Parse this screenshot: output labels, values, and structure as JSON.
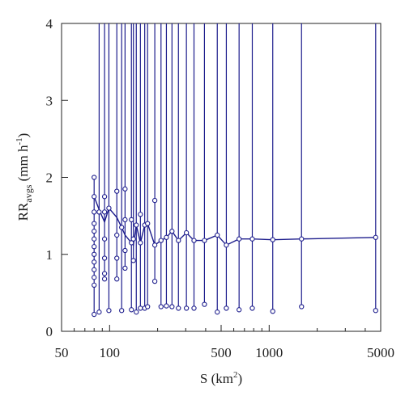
{
  "chart_data": {
    "type": "line",
    "x_scale": "log",
    "xlim": [
      50,
      5000
    ],
    "ylim": [
      0,
      4
    ],
    "xlabel": "S (km",
    "xlabel_sup": "2",
    "xlabel_tail": ")",
    "ylabel_main": "RR",
    "ylabel_sub": "avgs",
    "ylabel_unit": " (mm h",
    "ylabel_unit_sup": "-1",
    "ylabel_close": ")",
    "x_ticks": [
      50,
      100,
      500,
      1000,
      5000
    ],
    "x_tick_labels": [
      "50",
      "100",
      "500",
      "1000",
      "5000"
    ],
    "y_ticks": [
      0,
      1,
      2,
      3,
      4
    ],
    "y_tick_labels": [
      "0",
      "1",
      "2",
      "3",
      "4"
    ],
    "grid": false,
    "colors": {
      "series": "#1c1c8c",
      "axis": "#222222"
    },
    "stations": [
      {
        "x": 80,
        "mean": 1.75,
        "lo": 0.22,
        "hi": 2.0,
        "circles": [
          2.0,
          1.75,
          1.55,
          1.4,
          1.3,
          1.2,
          1.1,
          1.0,
          0.9,
          0.8,
          0.7,
          0.6,
          0.22
        ]
      },
      {
        "x": 86,
        "mean": 1.58,
        "lo": 0.25,
        "hi": 4.0,
        "circles": [
          1.55,
          0.25
        ]
      },
      {
        "x": 93,
        "mean": 1.42,
        "lo": 0.68,
        "hi": 4.0,
        "circles": [
          1.75,
          1.55,
          1.2,
          0.95,
          0.75,
          0.68
        ]
      },
      {
        "x": 99,
        "mean": 1.6,
        "lo": 0.27,
        "hi": 4.0,
        "circles": [
          1.6,
          0.27
        ]
      },
      {
        "x": 111,
        "mean": 1.48,
        "lo": 0.68,
        "hi": 4.0,
        "circles": [
          1.82,
          1.25,
          0.95,
          0.68
        ]
      },
      {
        "x": 119,
        "mean": 1.35,
        "lo": 0.27,
        "hi": 4.0,
        "circles": [
          1.35,
          0.27
        ]
      },
      {
        "x": 125,
        "mean": 1.25,
        "lo": 0.82,
        "hi": 4.0,
        "circles": [
          1.85,
          1.45,
          1.05,
          0.82
        ]
      },
      {
        "x": 137,
        "mean": 1.15,
        "lo": 0.28,
        "hi": 4.0,
        "circles": [
          1.45,
          1.15,
          0.28
        ]
      },
      {
        "x": 141,
        "mean": 1.12,
        "lo": 0.92,
        "hi": 4.0,
        "circles": [
          1.2,
          0.92
        ]
      },
      {
        "x": 147,
        "mean": 1.38,
        "lo": 0.25,
        "hi": 4.0,
        "circles": [
          1.38,
          0.25
        ]
      },
      {
        "x": 156,
        "mean": 1.15,
        "lo": 0.3,
        "hi": 4.0,
        "circles": [
          1.52,
          1.15,
          0.3
        ]
      },
      {
        "x": 166,
        "mean": 1.38,
        "lo": 0.3,
        "hi": 4.0,
        "circles": [
          1.38,
          0.3
        ]
      },
      {
        "x": 173,
        "mean": 1.4,
        "lo": 0.32,
        "hi": 4.0,
        "circles": [
          1.4,
          0.32
        ]
      },
      {
        "x": 192,
        "mean": 1.12,
        "lo": 0.65,
        "hi": 4.0,
        "circles": [
          1.7,
          1.12,
          0.65
        ]
      },
      {
        "x": 210,
        "mean": 1.18,
        "lo": 0.32,
        "hi": 4.0,
        "circles": [
          1.18,
          0.32
        ]
      },
      {
        "x": 227,
        "mean": 1.22,
        "lo": 0.33,
        "hi": 4.0,
        "circles": [
          1.22,
          0.33
        ]
      },
      {
        "x": 246,
        "mean": 1.3,
        "lo": 0.32,
        "hi": 4.0,
        "circles": [
          1.3,
          0.32
        ]
      },
      {
        "x": 270,
        "mean": 1.18,
        "lo": 0.3,
        "hi": 4.0,
        "circles": [
          1.18,
          0.3
        ]
      },
      {
        "x": 303,
        "mean": 1.28,
        "lo": 0.3,
        "hi": 4.0,
        "circles": [
          1.28,
          0.3
        ]
      },
      {
        "x": 338,
        "mean": 1.18,
        "lo": 0.3,
        "hi": 4.0,
        "circles": [
          1.18,
          0.3
        ]
      },
      {
        "x": 393,
        "mean": 1.18,
        "lo": 0.35,
        "hi": 4.0,
        "circles": [
          1.18,
          0.35
        ]
      },
      {
        "x": 473,
        "mean": 1.25,
        "lo": 0.25,
        "hi": 4.0,
        "circles": [
          1.25,
          0.25
        ]
      },
      {
        "x": 539,
        "mean": 1.12,
        "lo": 0.3,
        "hi": 4.0,
        "circles": [
          1.12,
          0.3
        ]
      },
      {
        "x": 648,
        "mean": 1.2,
        "lo": 0.28,
        "hi": 4.0,
        "circles": [
          1.2,
          0.28
        ]
      },
      {
        "x": 784,
        "mean": 1.2,
        "lo": 0.3,
        "hi": 4.0,
        "circles": [
          1.2,
          0.3
        ]
      },
      {
        "x": 1053,
        "mean": 1.19,
        "lo": 0.26,
        "hi": 4.0,
        "circles": [
          1.19,
          0.26
        ]
      },
      {
        "x": 1595,
        "mean": 1.2,
        "lo": 0.32,
        "hi": 4.0,
        "circles": [
          1.2,
          0.32
        ]
      },
      {
        "x": 4650,
        "mean": 1.22,
        "lo": 0.27,
        "hi": 4.0,
        "circles": [
          1.22,
          0.27
        ]
      }
    ]
  }
}
